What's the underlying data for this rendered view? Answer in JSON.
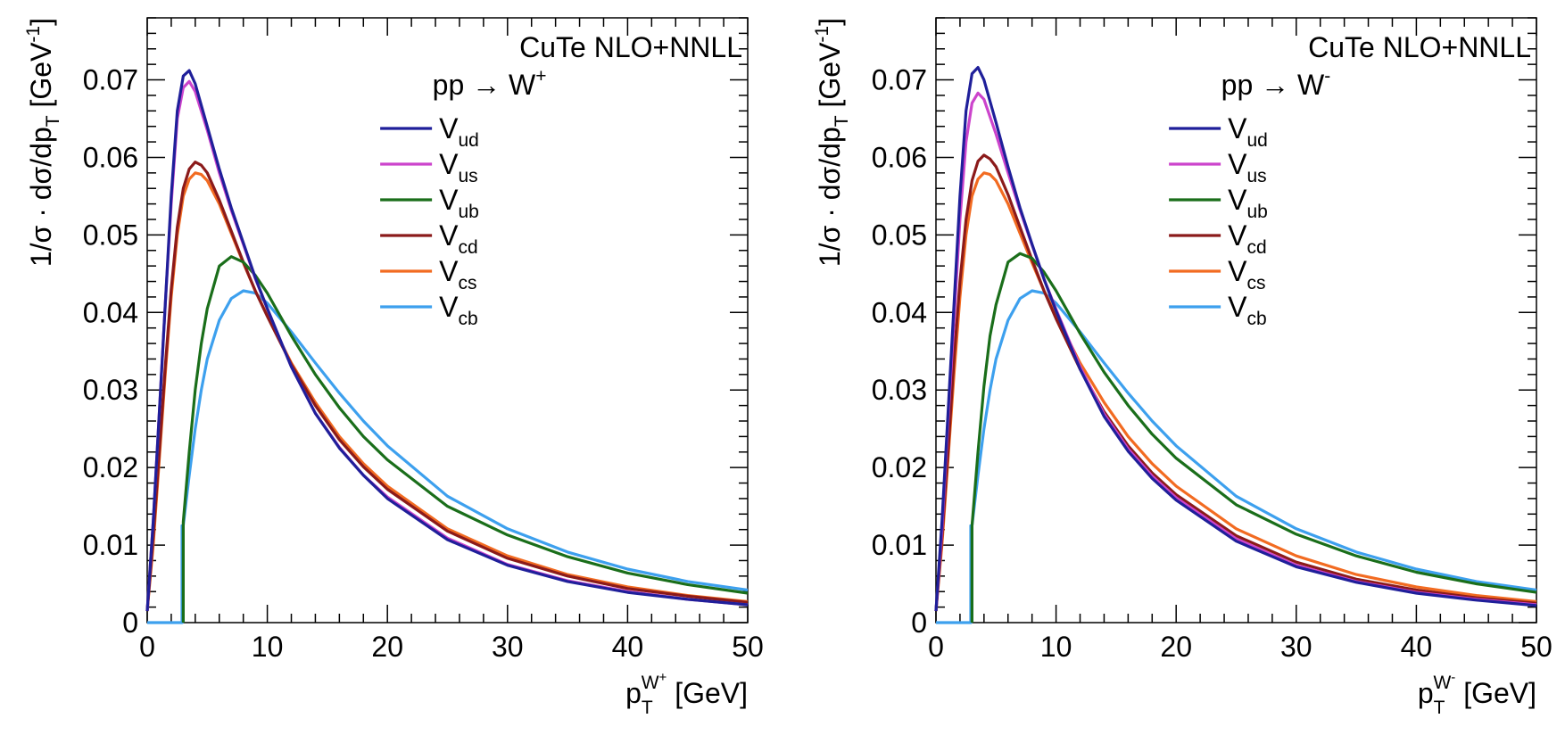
{
  "chart_data": [
    {
      "type": "line",
      "title": "CuTe NLO+NNLL",
      "process": "pp → W+",
      "xlabel": "p_T^{W+} [GeV]",
      "ylabel": "1/σ · dσ/dp_T [GeV^-1]",
      "xlim": [
        0,
        50
      ],
      "ylim": [
        0,
        0.078
      ],
      "grid": false,
      "legend_position": "top-right",
      "x_ticks": [
        "0",
        "10",
        "20",
        "30",
        "40",
        "50"
      ],
      "y_ticks": [
        "0",
        "0.01",
        "0.02",
        "0.03",
        "0.04",
        "0.05",
        "0.06",
        "0.07"
      ],
      "series": [
        {
          "name": "V_ud",
          "color": "#1f1f9a",
          "x": [
            0,
            0.5,
            1,
            1.5,
            2,
            2.5,
            3,
            3.5,
            4,
            5,
            6,
            7,
            8,
            9,
            10,
            12,
            14,
            16,
            18,
            20,
            25,
            30,
            35,
            40,
            45,
            50
          ],
          "y": [
            0.0015,
            0.013,
            0.027,
            0.041,
            0.055,
            0.066,
            0.0705,
            0.0712,
            0.0695,
            0.064,
            0.0585,
            0.0535,
            0.049,
            0.0445,
            0.0405,
            0.033,
            0.027,
            0.0225,
            0.019,
            0.016,
            0.0107,
            0.0074,
            0.0053,
            0.0039,
            0.003,
            0.0023
          ]
        },
        {
          "name": "V_us",
          "color": "#cc44cc",
          "x": [
            0,
            0.5,
            1,
            1.5,
            2,
            2.5,
            3,
            3.5,
            4,
            5,
            6,
            7,
            8,
            9,
            10,
            12,
            14,
            16,
            18,
            20,
            25,
            30,
            35,
            40,
            45,
            50
          ],
          "y": [
            0.0015,
            0.013,
            0.027,
            0.041,
            0.054,
            0.065,
            0.069,
            0.0698,
            0.0685,
            0.0635,
            0.058,
            0.0532,
            0.0488,
            0.0444,
            0.0405,
            0.033,
            0.027,
            0.0226,
            0.019,
            0.0162,
            0.0109,
            0.0075,
            0.0054,
            0.004,
            0.003,
            0.0023
          ]
        },
        {
          "name": "V_ub",
          "color": "#1a6e1a",
          "x": [
            3,
            3.5,
            4,
            4.5,
            5,
            6,
            7,
            8,
            9,
            10,
            12,
            14,
            16,
            18,
            20,
            25,
            30,
            35,
            40,
            45,
            50
          ],
          "y": [
            0.013,
            0.022,
            0.03,
            0.036,
            0.0405,
            0.046,
            0.0472,
            0.0465,
            0.0448,
            0.0425,
            0.037,
            0.032,
            0.0277,
            0.024,
            0.021,
            0.015,
            0.0113,
            0.0085,
            0.0064,
            0.0049,
            0.0038
          ]
        },
        {
          "name": "V_cd",
          "color": "#8b1a1a",
          "x": [
            0,
            0.5,
            1,
            1.5,
            2,
            2.5,
            3,
            3.5,
            4,
            4.5,
            5,
            6,
            7,
            8,
            9,
            10,
            12,
            14,
            16,
            18,
            20,
            25,
            30,
            35,
            40,
            45,
            50
          ],
          "y": [
            0.0015,
            0.011,
            0.022,
            0.033,
            0.043,
            0.051,
            0.056,
            0.0585,
            0.0594,
            0.059,
            0.058,
            0.0545,
            0.0505,
            0.0465,
            0.0428,
            0.0395,
            0.0333,
            0.028,
            0.0236,
            0.0201,
            0.0172,
            0.0118,
            0.0083,
            0.006,
            0.0044,
            0.0034,
            0.0026
          ]
        },
        {
          "name": "V_cs",
          "color": "#f26b21",
          "x": [
            0,
            0.5,
            1,
            1.5,
            2,
            2.5,
            3,
            3.5,
            4,
            4.5,
            5,
            6,
            7,
            8,
            9,
            10,
            12,
            14,
            16,
            18,
            20,
            25,
            30,
            35,
            40,
            45,
            50
          ],
          "y": [
            0.0015,
            0.01,
            0.021,
            0.032,
            0.042,
            0.05,
            0.055,
            0.0572,
            0.058,
            0.0578,
            0.057,
            0.054,
            0.0502,
            0.0464,
            0.0428,
            0.0396,
            0.0335,
            0.0284,
            0.024,
            0.0205,
            0.0176,
            0.0121,
            0.0086,
            0.0062,
            0.0046,
            0.0035,
            0.0027
          ]
        },
        {
          "name": "V_cb",
          "color": "#3da0ee",
          "x": [
            0,
            2.9,
            3,
            3.5,
            4,
            4.5,
            5,
            6,
            7,
            8,
            9,
            10,
            12,
            14,
            16,
            18,
            20,
            25,
            30,
            35,
            40,
            45,
            50
          ],
          "y": [
            0,
            0,
            0.0125,
            0.019,
            0.025,
            0.03,
            0.034,
            0.039,
            0.0418,
            0.0428,
            0.0425,
            0.0412,
            0.0375,
            0.0335,
            0.0296,
            0.026,
            0.0228,
            0.0163,
            0.0121,
            0.0091,
            0.0069,
            0.0053,
            0.0042
          ]
        }
      ]
    },
    {
      "type": "line",
      "title": "CuTe NLO+NNLL",
      "process": "pp → W-",
      "xlabel": "p_T^{W-} [GeV]",
      "ylabel": "1/σ · dσ/dp_T [GeV^-1]",
      "xlim": [
        0,
        50
      ],
      "ylim": [
        0,
        0.078
      ],
      "grid": false,
      "legend_position": "top-right",
      "x_ticks": [
        "0",
        "10",
        "20",
        "30",
        "40",
        "50"
      ],
      "y_ticks": [
        "0",
        "0.01",
        "0.02",
        "0.03",
        "0.04",
        "0.05",
        "0.06",
        "0.07"
      ],
      "series": [
        {
          "name": "V_ud",
          "color": "#1f1f9a",
          "x": [
            0,
            0.5,
            1,
            1.5,
            2,
            2.5,
            3,
            3.5,
            4,
            5,
            6,
            7,
            8,
            9,
            10,
            12,
            14,
            16,
            18,
            20,
            25,
            30,
            35,
            40,
            45,
            50
          ],
          "y": [
            0.0015,
            0.013,
            0.027,
            0.041,
            0.055,
            0.066,
            0.0708,
            0.0716,
            0.07,
            0.0645,
            0.0588,
            0.0535,
            0.0488,
            0.0443,
            0.0402,
            0.0327,
            0.0266,
            0.0221,
            0.0186,
            0.0158,
            0.0105,
            0.0072,
            0.0052,
            0.0038,
            0.0029,
            0.0022
          ]
        },
        {
          "name": "V_us",
          "color": "#cc44cc",
          "x": [
            0,
            0.5,
            1,
            1.5,
            2,
            2.5,
            3,
            3.5,
            4,
            5,
            6,
            7,
            8,
            9,
            10,
            12,
            14,
            16,
            18,
            20,
            25,
            30,
            35,
            40,
            45,
            50
          ],
          "y": [
            0.0015,
            0.012,
            0.026,
            0.039,
            0.052,
            0.062,
            0.067,
            0.0683,
            0.0675,
            0.063,
            0.058,
            0.0532,
            0.0487,
            0.0443,
            0.0404,
            0.033,
            0.0269,
            0.0224,
            0.0189,
            0.0161,
            0.0108,
            0.0074,
            0.0053,
            0.0039,
            0.003,
            0.0023
          ]
        },
        {
          "name": "V_ub",
          "color": "#1a6e1a",
          "x": [
            3,
            3.5,
            4,
            4.5,
            5,
            6,
            7,
            8,
            9,
            10,
            12,
            14,
            16,
            18,
            20,
            25,
            30,
            35,
            40,
            45,
            50
          ],
          "y": [
            0.0125,
            0.022,
            0.0305,
            0.037,
            0.041,
            0.0465,
            0.0476,
            0.047,
            0.0452,
            0.0428,
            0.0373,
            0.0323,
            0.028,
            0.0243,
            0.0212,
            0.0152,
            0.0114,
            0.0086,
            0.0065,
            0.005,
            0.0039
          ]
        },
        {
          "name": "V_cd",
          "color": "#8b1a1a",
          "x": [
            0,
            0.5,
            1,
            1.5,
            2,
            2.5,
            3,
            3.5,
            4,
            4.5,
            5,
            6,
            7,
            8,
            9,
            10,
            12,
            14,
            16,
            18,
            20,
            25,
            30,
            35,
            40,
            45,
            50
          ],
          "y": [
            0.0015,
            0.011,
            0.022,
            0.034,
            0.044,
            0.052,
            0.057,
            0.0595,
            0.0603,
            0.0598,
            0.0588,
            0.0552,
            0.051,
            0.0468,
            0.0428,
            0.0392,
            0.0327,
            0.0272,
            0.0228,
            0.0193,
            0.0165,
            0.0112,
            0.0078,
            0.0056,
            0.0042,
            0.0032,
            0.0025
          ]
        },
        {
          "name": "V_cs",
          "color": "#f26b21",
          "x": [
            0,
            0.5,
            1,
            1.5,
            2,
            2.5,
            3,
            3.5,
            4,
            4.5,
            5,
            6,
            7,
            8,
            9,
            10,
            12,
            14,
            16,
            18,
            20,
            25,
            30,
            35,
            40,
            45,
            50
          ],
          "y": [
            0.0015,
            0.01,
            0.021,
            0.032,
            0.042,
            0.05,
            0.055,
            0.0572,
            0.058,
            0.0578,
            0.057,
            0.054,
            0.0502,
            0.0464,
            0.0428,
            0.0396,
            0.0335,
            0.0284,
            0.024,
            0.0205,
            0.0176,
            0.0121,
            0.0086,
            0.0062,
            0.0046,
            0.0035,
            0.0027
          ]
        },
        {
          "name": "V_cb",
          "color": "#3da0ee",
          "x": [
            0,
            2.9,
            3,
            3.5,
            4,
            4.5,
            5,
            6,
            7,
            8,
            9,
            10,
            12,
            14,
            16,
            18,
            20,
            25,
            30,
            35,
            40,
            45,
            50
          ],
          "y": [
            0,
            0,
            0.0125,
            0.019,
            0.025,
            0.03,
            0.034,
            0.039,
            0.0418,
            0.0428,
            0.0425,
            0.0412,
            0.0375,
            0.0335,
            0.0296,
            0.026,
            0.0228,
            0.0163,
            0.0121,
            0.0091,
            0.0069,
            0.0053,
            0.0042
          ]
        }
      ]
    }
  ]
}
